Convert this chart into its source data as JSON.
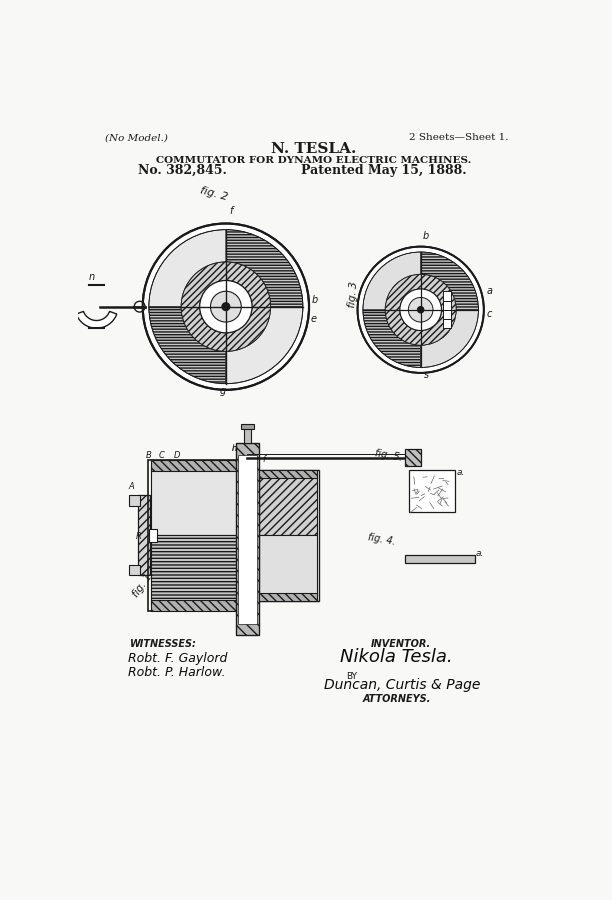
{
  "bg_color": "#f8f8f6",
  "paper_color": "#fafafa",
  "line_color": "#1a1a1a",
  "hatch_color": "#333333",
  "title_line1": "N. TESLA.",
  "title_line2": "COMMUTATOR FOR DYNAMO ELECTRIC MACHINES.",
  "patent_no": "No. 382,845.",
  "patent_date": "Patented May 15, 1888.",
  "header_left": "(No Model.)",
  "header_right": "2 Sheets—Sheet 1.",
  "witnesses_label": "WITNESSES:",
  "witness1": "Robt. F. Gaylord",
  "witness2": "Robt. P. Harlow.",
  "inventor_label": "INVENTOR.",
  "inventor_sig": "Nikola Tesla.",
  "by_label": "BY",
  "attorneys_sig": "Duncan, Curtis & Page",
  "attorneys_label": "ATTORNEYS."
}
